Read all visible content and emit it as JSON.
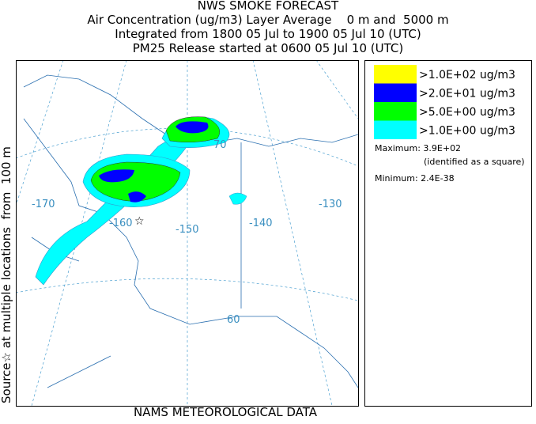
{
  "header": {
    "title": "NWS SMOKE FORECAST",
    "lines": [
      "Air Concentration (ug/m3) Layer Average    0 m and  5000 m",
      "Integrated from 1800 05 Jul to 1900 05 Jul 10 (UTC)",
      "PM25 Release started at 0600 05 Jul 10 (UTC)"
    ]
  },
  "side_label": "Source☆ at multiple locations  from  100 m",
  "map": {
    "labels": [
      "-170",
      "-160",
      "-150",
      "-140",
      "-130",
      "70",
      "60"
    ]
  },
  "legend": {
    "entries": [
      {
        "label": ">1.0E+02 ug/m3",
        "color": "#ffff00"
      },
      {
        "label": ">2.0E+01 ug/m3",
        "color": "#0000ff"
      },
      {
        "label": ">5.0E+00 ug/m3",
        "color": "#00ff00"
      },
      {
        "label": ">1.0E+00 ug/m3",
        "color": "#00ffff"
      }
    ],
    "maximum": "Maximum: 3.9E+02",
    "note": "(identified as a square)",
    "minimum": "Minimum: 2.4E-38"
  },
  "footer": "NAMS METEOROLOGICAL DATA"
}
